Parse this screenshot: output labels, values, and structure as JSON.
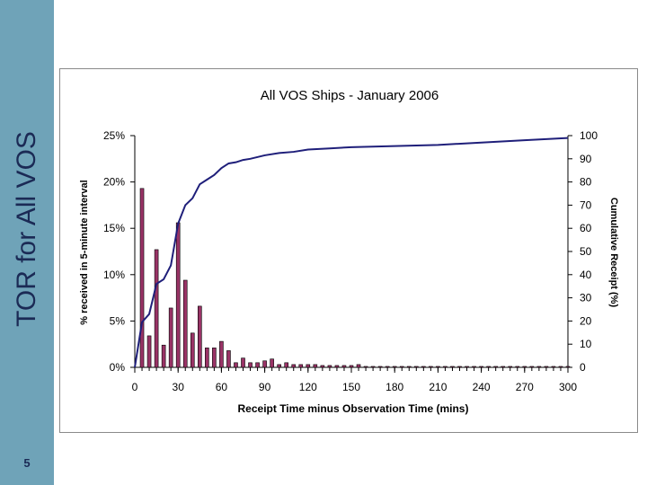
{
  "slide": {
    "title": "TOR for All VOS",
    "number": "5",
    "sidebar_color": "#6fa3b8",
    "title_color": "#1b2a55"
  },
  "chart_data": {
    "type": "bar",
    "title": "All VOS Ships - January 2006",
    "xlabel": "Receipt Time minus Observation Time (mins)",
    "ylabel": "% received in 5-minute interval",
    "y2label": "Cumulative Receipt (%)",
    "xlim": [
      0,
      300
    ],
    "ylim": [
      0,
      25
    ],
    "y2lim": [
      0,
      100
    ],
    "x_ticks": [
      0,
      30,
      60,
      90,
      120,
      150,
      180,
      210,
      240,
      270,
      300
    ],
    "y_ticks": [
      "0%",
      "5%",
      "10%",
      "15%",
      "20%",
      "25%"
    ],
    "y_tick_values": [
      0,
      5,
      10,
      15,
      20,
      25
    ],
    "y2_ticks": [
      0,
      10,
      20,
      30,
      40,
      50,
      60,
      70,
      80,
      90,
      100
    ],
    "grid": false,
    "bar_color": "#993366",
    "line_color": "#1f1f7a",
    "series": [
      {
        "type": "bar",
        "x": [
          5,
          10,
          15,
          20,
          25,
          30,
          35,
          40,
          45,
          50,
          55,
          60,
          65,
          70,
          75,
          80,
          85,
          90,
          95,
          100,
          105,
          110,
          115,
          120,
          125,
          130,
          135,
          140,
          145,
          150,
          155,
          160,
          165,
          170,
          175,
          180,
          185,
          190,
          195,
          200,
          205,
          210,
          215,
          220,
          225,
          230,
          235,
          240,
          245,
          250,
          255,
          260,
          265,
          270,
          275,
          280,
          285,
          290,
          295,
          300
        ],
        "values": [
          19.3,
          3.4,
          12.7,
          2.4,
          6.4,
          15.6,
          9.4,
          3.7,
          6.6,
          2.1,
          2.1,
          2.8,
          1.8,
          0.5,
          1.0,
          0.5,
          0.5,
          0.7,
          0.9,
          0.3,
          0.5,
          0.3,
          0.3,
          0.3,
          0.3,
          0.2,
          0.2,
          0.2,
          0.2,
          0.2,
          0.3,
          0.1,
          0.1,
          0.1,
          0.1,
          0.1,
          0.1,
          0.1,
          0.1,
          0.1,
          0.1,
          0.1,
          0.1,
          0.1,
          0.1,
          0.1,
          0.1,
          0.1,
          0.1,
          0.1,
          0.1,
          0.1,
          0.1,
          0.1,
          0.1,
          0.1,
          0.1,
          0.1,
          0.1,
          0.1
        ]
      },
      {
        "type": "line",
        "axis": "right",
        "x": [
          0,
          5,
          10,
          15,
          20,
          25,
          30,
          35,
          40,
          45,
          50,
          55,
          60,
          65,
          70,
          75,
          80,
          90,
          100,
          110,
          120,
          135,
          150,
          180,
          210,
          240,
          270,
          300
        ],
        "values": [
          0,
          19.5,
          23,
          36,
          38,
          44,
          62,
          70,
          73,
          79,
          81,
          83,
          86,
          88,
          88.5,
          89.5,
          90,
          91.5,
          92.5,
          93,
          94,
          94.5,
          95,
          95.5,
          96,
          97,
          98,
          99
        ]
      }
    ]
  }
}
